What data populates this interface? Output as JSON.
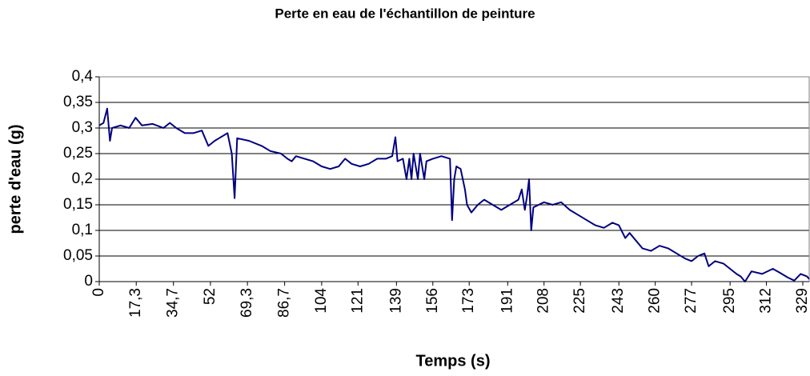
{
  "chart_data": {
    "type": "line",
    "title": "Perte en eau de l'échantillon de peinture",
    "x_label": "Temps (s)",
    "y_label": "perte d'eau (g)",
    "color": "#000080",
    "grid": true,
    "xlim": [
      0,
      332
    ],
    "ylim": [
      0,
      0.4
    ],
    "xticks": [
      0,
      {
        "value": 17.3,
        "label": "17,3"
      },
      {
        "value": 34.7,
        "label": "34,7"
      },
      52,
      {
        "value": 69.3,
        "label": "69,3"
      },
      {
        "value": 86.7,
        "label": "86,7"
      },
      104,
      121,
      139,
      156,
      173,
      191,
      208,
      225,
      243,
      260,
      277,
      295,
      312,
      329
    ],
    "yticks": [
      0,
      {
        "value": 0.05,
        "label": "0,05"
      },
      {
        "value": 0.1,
        "label": "0,1"
      },
      {
        "value": 0.15,
        "label": "0,15"
      },
      {
        "value": 0.2,
        "label": "0,2"
      },
      {
        "value": 0.25,
        "label": "0,25"
      },
      {
        "value": 0.3,
        "label": "0,3"
      },
      {
        "value": 0.35,
        "label": "0,35"
      },
      {
        "value": 0.4,
        "label": "0,4"
      }
    ],
    "x": [
      0,
      2,
      3.7,
      5,
      6,
      10,
      14,
      17,
      20,
      25,
      30,
      33,
      36,
      40,
      44,
      48,
      51,
      54,
      56,
      60,
      62,
      63.3,
      64.5,
      70,
      76,
      80,
      85,
      88,
      90,
      92,
      96,
      100,
      104,
      108,
      112,
      115,
      118,
      122,
      126,
      130,
      134,
      137,
      138.5,
      139.5,
      142,
      143.7,
      145,
      146,
      147,
      149,
      150,
      152,
      153,
      156,
      160,
      164,
      165,
      166,
      167,
      169,
      171,
      172,
      174,
      177,
      180,
      184,
      188,
      192,
      196,
      197.6,
      199,
      200,
      201,
      202,
      203,
      208,
      212,
      216,
      220,
      224,
      228,
      232,
      236,
      240,
      243,
      246,
      248,
      251,
      254,
      258,
      262,
      266,
      270,
      274,
      277,
      280,
      283,
      285,
      288,
      292,
      295,
      298,
      300,
      302,
      305,
      310,
      315,
      318,
      322,
      325,
      328,
      331,
      332
    ],
    "values": [
      0.305,
      0.31,
      0.338,
      0.275,
      0.3,
      0.305,
      0.3,
      0.32,
      0.305,
      0.308,
      0.3,
      0.31,
      0.3,
      0.29,
      0.29,
      0.295,
      0.265,
      0.275,
      0.28,
      0.29,
      0.25,
      0.163,
      0.28,
      0.275,
      0.265,
      0.255,
      0.25,
      0.24,
      0.235,
      0.245,
      0.24,
      0.235,
      0.225,
      0.22,
      0.225,
      0.24,
      0.23,
      0.225,
      0.23,
      0.24,
      0.24,
      0.245,
      0.282,
      0.235,
      0.24,
      0.2,
      0.24,
      0.2,
      0.25,
      0.2,
      0.25,
      0.2,
      0.235,
      0.24,
      0.245,
      0.24,
      0.12,
      0.2,
      0.225,
      0.22,
      0.18,
      0.15,
      0.135,
      0.15,
      0.16,
      0.15,
      0.14,
      0.15,
      0.16,
      0.18,
      0.14,
      0.165,
      0.2,
      0.1,
      0.145,
      0.155,
      0.15,
      0.155,
      0.14,
      0.13,
      0.12,
      0.11,
      0.105,
      0.115,
      0.11,
      0.085,
      0.095,
      0.08,
      0.065,
      0.06,
      0.07,
      0.065,
      0.055,
      0.045,
      0.04,
      0.05,
      0.055,
      0.03,
      0.04,
      0.035,
      0.025,
      0.015,
      0.01,
      0.0,
      0.02,
      0.015,
      0.025,
      0.018,
      0.008,
      0.002,
      0.015,
      0.01,
      0.005
    ]
  }
}
